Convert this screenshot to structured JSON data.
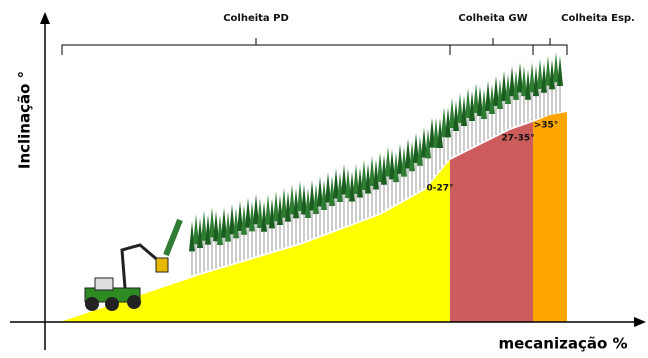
{
  "axes": {
    "y_label": "Inclinação °",
    "x_label": "mecanização %"
  },
  "brackets": [
    {
      "label": "Colheita PD"
    },
    {
      "label": "Colheita GW"
    },
    {
      "label": "Colheita Esp."
    }
  ],
  "zones": [
    {
      "label": "0-27°"
    },
    {
      "label": "27-35°"
    },
    {
      "label": ">35°"
    }
  ]
}
